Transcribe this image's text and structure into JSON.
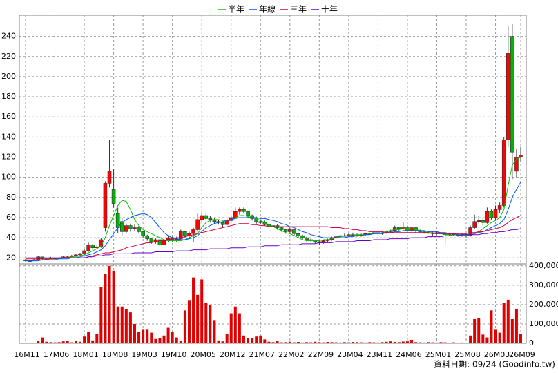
{
  "chart_data": {
    "type": "candlestick",
    "legend": "top",
    "grid": true,
    "up_color": "#ff0000",
    "down_color": "#00b400",
    "source": "資料日期: 09/24 (Goodinfo.tw)",
    "categories": [
      "16M11",
      null,
      null,
      null,
      null,
      null,
      null,
      "17M06",
      null,
      null,
      null,
      null,
      null,
      null,
      "18M01",
      null,
      null,
      null,
      null,
      null,
      null,
      "18M08",
      null,
      null,
      null,
      null,
      null,
      null,
      "19M03",
      null,
      null,
      null,
      null,
      null,
      null,
      "19M10",
      null,
      null,
      null,
      null,
      null,
      null,
      "20M05",
      null,
      null,
      null,
      null,
      null,
      null,
      "20M12",
      null,
      null,
      null,
      null,
      null,
      null,
      "21M07",
      null,
      null,
      null,
      null,
      null,
      null,
      "22M02",
      null,
      null,
      null,
      null,
      null,
      null,
      "22M09",
      null,
      null,
      null,
      null,
      null,
      null,
      "23M04",
      null,
      null,
      null,
      null,
      null,
      null,
      "23M11",
      null,
      null,
      null,
      null,
      null,
      null,
      "24M06",
      null,
      null,
      null,
      null,
      null,
      null,
      "25M01",
      null,
      null,
      null,
      null,
      null,
      null,
      "25M08",
      null,
      null,
      null,
      null,
      null,
      null,
      "26M03",
      null,
      null,
      null,
      null,
      null,
      "26M09"
    ],
    "open": [
      18,
      17,
      17,
      18,
      21,
      19,
      19,
      20,
      20,
      20,
      21,
      21,
      22,
      23,
      24,
      27,
      33,
      30,
      31,
      50,
      94,
      88,
      64,
      56,
      46,
      52,
      49,
      50,
      46,
      42,
      39,
      36,
      38,
      33,
      37,
      40,
      38,
      39,
      46,
      42,
      44,
      48,
      58,
      62,
      59,
      58,
      56,
      55,
      53,
      57,
      60,
      66,
      68,
      66,
      62,
      59,
      56,
      55,
      53,
      51,
      52,
      50,
      48,
      46,
      48,
      44,
      42,
      40,
      38,
      37,
      36,
      35,
      37,
      38,
      40,
      41,
      42,
      42,
      43,
      43,
      42,
      43,
      44,
      44,
      45,
      44,
      45,
      46,
      47,
      50,
      49,
      50,
      47,
      50,
      47,
      46,
      45,
      45,
      44,
      45,
      44,
      43,
      44,
      43,
      42,
      43,
      42,
      50,
      56,
      57,
      55,
      66,
      60,
      68,
      72,
      137,
      240,
      106,
      120
    ],
    "high": [
      19,
      18,
      19,
      22,
      21,
      20,
      21,
      21,
      22,
      22,
      22,
      23,
      24,
      25,
      29,
      35,
      34,
      33,
      40,
      96,
      137,
      108,
      70,
      60,
      54,
      54,
      53,
      52,
      47,
      43,
      40,
      40,
      39,
      38,
      42,
      41,
      41,
      48,
      47,
      46,
      50,
      64,
      65,
      64,
      62,
      60,
      58,
      56,
      59,
      62,
      70,
      70,
      70,
      67,
      63,
      61,
      58,
      57,
      54,
      54,
      53,
      51,
      49,
      50,
      49,
      45,
      43,
      41,
      40,
      38,
      37,
      38,
      39,
      41,
      42,
      43,
      44,
      44,
      45,
      44,
      44,
      45,
      45,
      46,
      46,
      46,
      47,
      48,
      52,
      51,
      55,
      52,
      51,
      51,
      48,
      47,
      46,
      46,
      46,
      46,
      45,
      45,
      45,
      44,
      44,
      44,
      52,
      63,
      62,
      60,
      70,
      68,
      72,
      75,
      140,
      250,
      252,
      128,
      130
    ],
    "low": [
      16,
      16,
      17,
      18,
      18,
      18,
      19,
      19,
      20,
      20,
      20,
      21,
      22,
      22,
      23,
      26,
      28,
      29,
      30,
      46,
      90,
      70,
      45,
      42,
      44,
      46,
      47,
      44,
      40,
      37,
      34,
      34,
      31,
      32,
      36,
      36,
      36,
      38,
      40,
      40,
      36,
      46,
      56,
      57,
      56,
      54,
      53,
      50,
      52,
      56,
      59,
      63,
      64,
      60,
      57,
      54,
      53,
      52,
      50,
      50,
      48,
      46,
      44,
      45,
      42,
      40,
      38,
      36,
      36,
      34,
      33,
      34,
      36,
      37,
      39,
      40,
      41,
      41,
      42,
      41,
      41,
      42,
      43,
      43,
      43,
      43,
      44,
      45,
      46,
      47,
      48,
      46,
      46,
      45,
      45,
      44,
      44,
      42,
      43,
      42,
      33,
      42,
      42,
      41,
      41,
      40,
      41,
      49,
      54,
      52,
      54,
      58,
      58,
      64,
      70,
      130,
      98,
      100,
      115
    ],
    "close": [
      17,
      17,
      18,
      21,
      19,
      19,
      20,
      20,
      20,
      21,
      21,
      22,
      23,
      24,
      27,
      33,
      30,
      31,
      38,
      94,
      106,
      74,
      50,
      46,
      52,
      49,
      50,
      46,
      42,
      39,
      36,
      38,
      33,
      37,
      40,
      38,
      39,
      46,
      42,
      44,
      48,
      58,
      62,
      59,
      58,
      56,
      55,
      53,
      57,
      60,
      66,
      68,
      66,
      62,
      59,
      56,
      55,
      53,
      51,
      52,
      50,
      48,
      46,
      48,
      44,
      42,
      40,
      38,
      37,
      36,
      35,
      37,
      38,
      40,
      41,
      42,
      42,
      43,
      43,
      42,
      43,
      44,
      44,
      45,
      44,
      45,
      46,
      47,
      50,
      49,
      50,
      47,
      50,
      47,
      46,
      45,
      45,
      44,
      45,
      44,
      43,
      44,
      43,
      42,
      43,
      42,
      50,
      56,
      57,
      55,
      66,
      60,
      68,
      72,
      137,
      223,
      125,
      120,
      122
    ],
    "series": [
      {
        "name": "半年",
        "color": "#00c000",
        "values": [
          17,
          17,
          17,
          18,
          18,
          18,
          19,
          19,
          19,
          20,
          20,
          21,
          21,
          22,
          23,
          25,
          27,
          29,
          32,
          40,
          52,
          62,
          72,
          77,
          76,
          68,
          58,
          52,
          48,
          46,
          44,
          42,
          40,
          38,
          37,
          37,
          37,
          37,
          38,
          40,
          42,
          44,
          50,
          55,
          57,
          58,
          58,
          57,
          57,
          58,
          60,
          62,
          62,
          61,
          60,
          59,
          57,
          55,
          53,
          51,
          49,
          47,
          45,
          44,
          42,
          40,
          38,
          37,
          37,
          37,
          37,
          38,
          38,
          39,
          40,
          41,
          42,
          42,
          42,
          43,
          43,
          43,
          44,
          44,
          44,
          45,
          46,
          47,
          48,
          48,
          49,
          49,
          49,
          48,
          47,
          46,
          45,
          45,
          44,
          44,
          43,
          43,
          42,
          42,
          42,
          42,
          43,
          44,
          46,
          49,
          52,
          55,
          57,
          60,
          68,
          92,
          112,
          118,
          120
        ]
      },
      {
        "name": "年線",
        "color": "#0055ff",
        "values": [
          17,
          17,
          17,
          17,
          18,
          18,
          18,
          18,
          19,
          19,
          19,
          20,
          20,
          21,
          22,
          23,
          24,
          26,
          28,
          32,
          38,
          44,
          50,
          55,
          58,
          60,
          62,
          63,
          64,
          63,
          60,
          55,
          50,
          45,
          42,
          40,
          39,
          38,
          38,
          39,
          40,
          42,
          46,
          50,
          52,
          54,
          55,
          56,
          57,
          58,
          59,
          60,
          60,
          60,
          60,
          60,
          59,
          59,
          58,
          57,
          56,
          54,
          53,
          51,
          50,
          48,
          46,
          45,
          43,
          42,
          41,
          40,
          40,
          40,
          40,
          40,
          40,
          41,
          41,
          42,
          42,
          43,
          43,
          44,
          44,
          44,
          45,
          45,
          46,
          46,
          47,
          47,
          47,
          47,
          47,
          47,
          46,
          46,
          46,
          45,
          45,
          44,
          44,
          43,
          43,
          43,
          43,
          44,
          45,
          46,
          48,
          50,
          52,
          54,
          58,
          68,
          80,
          88,
          95
        ]
      },
      {
        "name": "三年",
        "color": "#d0003c",
        "values": [
          19,
          19,
          19,
          19,
          19,
          19,
          19,
          19,
          20,
          20,
          20,
          20,
          20,
          20,
          20,
          21,
          22,
          23,
          24,
          25,
          25,
          26,
          27,
          28,
          30,
          31,
          32,
          33,
          34,
          35,
          35,
          36,
          37,
          37,
          38,
          39,
          40,
          40,
          41,
          42,
          43,
          44,
          45,
          46,
          47,
          48,
          49,
          50,
          51,
          52,
          53,
          54,
          54,
          54,
          53,
          53,
          52,
          52,
          51,
          51,
          51,
          51,
          51,
          51,
          51,
          51,
          51,
          51,
          51,
          51,
          51,
          51,
          51,
          50,
          50,
          50,
          49,
          49,
          48,
          48,
          47,
          47,
          46,
          46,
          46,
          46,
          45,
          45,
          45,
          45,
          45,
          45,
          45,
          45,
          45,
          45,
          45,
          44,
          44,
          44,
          44,
          44,
          44,
          44,
          44,
          44,
          45,
          45,
          46,
          46,
          47,
          48,
          49,
          50,
          52,
          55,
          58,
          60,
          62
        ]
      },
      {
        "name": "十年",
        "color": "#6a00c8",
        "values": [
          20,
          20,
          20,
          20,
          20,
          20,
          20,
          20,
          20,
          20,
          20,
          20,
          20,
          20,
          20,
          21,
          21,
          22,
          22,
          23,
          23,
          24,
          24,
          24,
          24,
          24,
          25,
          25,
          25,
          25,
          25,
          26,
          26,
          26,
          26,
          26,
          27,
          27,
          27,
          27,
          28,
          28,
          28,
          28,
          29,
          29,
          29,
          29,
          29,
          30,
          30,
          30,
          30,
          31,
          31,
          31,
          31,
          32,
          32,
          32,
          32,
          33,
          33,
          33,
          33,
          33,
          34,
          34,
          34,
          34,
          35,
          35,
          35,
          35,
          36,
          36,
          36,
          36,
          36,
          37,
          37,
          37,
          37,
          38,
          38,
          38,
          38,
          39,
          39,
          39,
          39,
          39,
          40,
          40,
          40,
          40,
          41,
          41,
          41,
          41,
          42,
          42,
          42,
          42,
          43,
          43,
          43,
          43,
          43,
          44,
          44,
          45,
          45,
          46,
          46,
          47,
          48,
          48,
          49
        ]
      }
    ],
    "ylim": [
      14,
      261
    ],
    "yticks": [
      20,
      40,
      60,
      80,
      100,
      120,
      140,
      160,
      180,
      200,
      220,
      240
    ],
    "volume": {
      "color": "#e00000",
      "values": [
        3000,
        2000,
        3000,
        12000,
        30000,
        8000,
        6000,
        5000,
        6000,
        10000,
        12000,
        5000,
        14000,
        8000,
        35000,
        60000,
        15000,
        50000,
        290000,
        360000,
        400000,
        375000,
        190000,
        190000,
        175000,
        160000,
        100000,
        60000,
        70000,
        70000,
        55000,
        22000,
        25000,
        40000,
        80000,
        60000,
        30000,
        12000,
        170000,
        220000,
        340000,
        250000,
        330000,
        210000,
        200000,
        120000,
        15000,
        10000,
        50000,
        155000,
        190000,
        155000,
        40000,
        25000,
        28000,
        35000,
        40000,
        20000,
        8000,
        6000,
        12000,
        5000,
        6000,
        8000,
        5000,
        7000,
        4000,
        6000,
        5000,
        8000,
        6000,
        5000,
        7000,
        6000,
        5000,
        4000,
        6000,
        5000,
        7000,
        6000,
        5000,
        4000,
        6000,
        5000,
        4000,
        6000,
        8000,
        10000,
        7000,
        6000,
        9000,
        10000,
        18000,
        6000,
        5000,
        4000,
        6000,
        5000,
        4000,
        6000,
        5000,
        3000,
        5000,
        3000,
        4000,
        2000,
        40000,
        125000,
        130000,
        45000,
        30000,
        170000,
        70000,
        55000,
        210000,
        225000,
        125000,
        175000,
        50000
      ],
      "ylim": [
        0,
        410000
      ],
      "yticks": [
        0,
        {
          "value": 100000,
          "label": "100,000"
        },
        {
          "value": 200000,
          "label": "200,000"
        },
        {
          "value": 300000,
          "label": "300,000"
        },
        {
          "value": 400000,
          "label": "400,000"
        }
      ]
    }
  }
}
